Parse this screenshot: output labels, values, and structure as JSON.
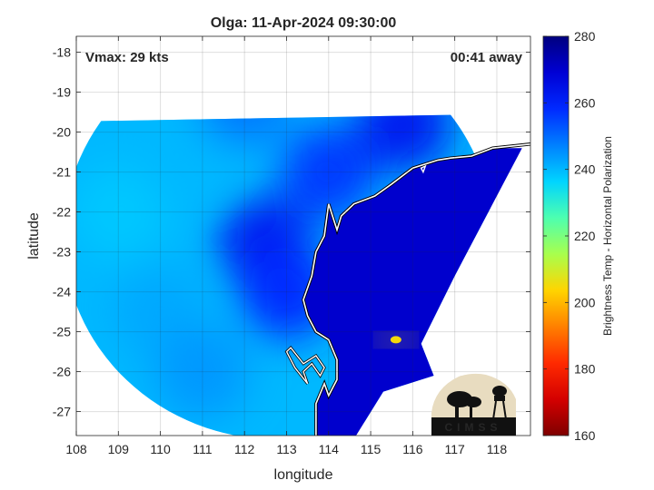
{
  "chart_data": {
    "type": "heatmap",
    "title": "Olga: 11-Apr-2024 09:30:00",
    "annotations": {
      "vmax": "Vmax: 29 kts",
      "time_away": "00:41 away"
    },
    "xlabel": "longitude",
    "ylabel": "latitude",
    "xlim": [
      108,
      118.8
    ],
    "ylim": [
      -27.6,
      -17.6
    ],
    "x_ticks": [
      108,
      109,
      110,
      111,
      112,
      113,
      114,
      115,
      116,
      117,
      118
    ],
    "y_ticks": [
      -18,
      -19,
      -20,
      -21,
      -22,
      -23,
      -24,
      -25,
      -26,
      -27
    ],
    "grid": true,
    "swath": {
      "center": [
        112.8,
        -22.6
      ],
      "radius_deg": 5.1,
      "edge_lat": -19.6,
      "edge_lon": 118.6
    },
    "field_values": [
      {
        "lon": 109.0,
        "lat": -22.0,
        "value": 238
      },
      {
        "lon": 110.5,
        "lat": -20.5,
        "value": 240
      },
      {
        "lon": 110.0,
        "lat": -24.5,
        "value": 242
      },
      {
        "lon": 111.0,
        "lat": -26.0,
        "value": 244
      },
      {
        "lon": 112.5,
        "lat": -22.8,
        "value": 262
      },
      {
        "lon": 113.0,
        "lat": -24.0,
        "value": 258
      },
      {
        "lon": 112.0,
        "lat": -19.2,
        "value": 248
      },
      {
        "lon": 114.0,
        "lat": -21.0,
        "value": 256
      },
      {
        "lon": 115.8,
        "lat": -19.8,
        "value": 262
      },
      {
        "lon": 115.6,
        "lat": -25.2,
        "value": 205
      }
    ],
    "land_value": 270,
    "colorbar": {
      "label": "Brightness Temp - Horizontal Polarization",
      "range": [
        160,
        280
      ],
      "ticks": [
        280,
        260,
        240,
        220,
        200,
        180,
        160
      ],
      "colormap": [
        "#7f0000",
        "#d40000",
        "#ff2a00",
        "#ff8000",
        "#ffd400",
        "#a8ff4d",
        "#4dffb0",
        "#00d4ff",
        "#0080ff",
        "#002aff",
        "#0000d4",
        "#00007f"
      ]
    }
  },
  "logo": {
    "name": "cimss-logo",
    "text": "CIMSS"
  }
}
